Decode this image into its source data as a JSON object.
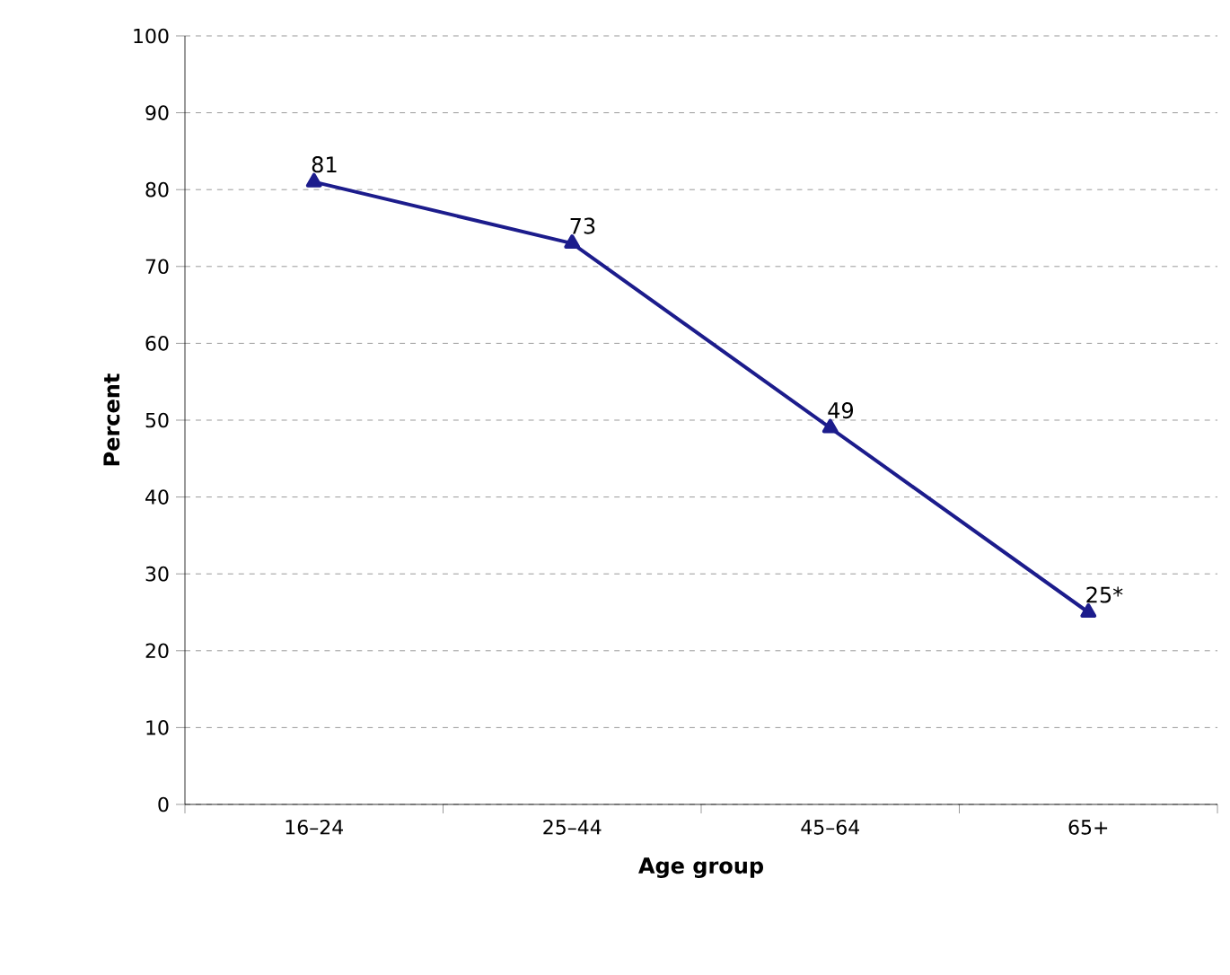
{
  "chart_data": {
    "type": "line",
    "xlabel": "Age group",
    "ylabel": "Percent",
    "categories": [
      "16–24",
      "25–44",
      "45–64",
      "65+"
    ],
    "series": [
      {
        "color": "#1c1c8c",
        "values": [
          81,
          73,
          49,
          25
        ],
        "value_labels": [
          "81",
          "73",
          "49",
          "25*"
        ]
      }
    ],
    "ylim": [
      0,
      100
    ],
    "yticks": [
      0,
      10,
      20,
      30,
      40,
      50,
      60,
      70,
      80,
      90,
      100
    ],
    "grid": "y",
    "marker": "triangle",
    "line_style": "solid"
  }
}
